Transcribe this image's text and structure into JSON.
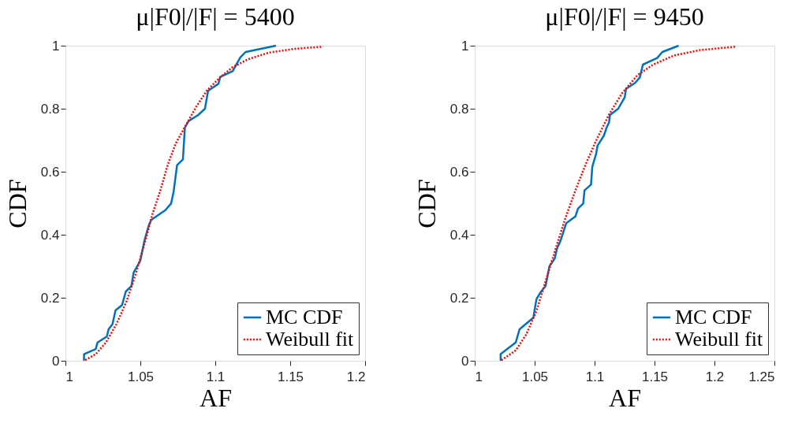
{
  "chart_data": [
    {
      "type": "line",
      "title": "μ|F0|/|F| = 5400",
      "xlabel": "AF",
      "ylabel": "CDF",
      "legend": "bottom right",
      "grid": false,
      "xlim": [
        1,
        1.2
      ],
      "xticks": [
        1,
        1.05,
        1.1,
        1.15,
        1.2
      ],
      "ylim": [
        0,
        1
      ],
      "yticks": [
        0,
        0.2,
        0.4,
        0.6,
        0.8,
        1
      ],
      "series": [
        {
          "name": "MC CDF",
          "color": "#0072bd",
          "line_style": "solid",
          "x": [
            1.0124,
            1.0124,
            1.0202,
            1.0214,
            1.0276,
            1.0288,
            1.0314,
            1.0334,
            1.0378,
            1.0403,
            1.044,
            1.0455,
            1.05,
            1.0526,
            1.0555,
            1.0572,
            1.0667,
            1.0705,
            1.0722,
            1.0745,
            1.0784,
            1.0797,
            1.0822,
            1.0886,
            1.0931,
            1.0952,
            1.1021,
            1.1033,
            1.1116,
            1.1167,
            1.1202,
            1.1405
          ],
          "values": [
            0,
            0.021,
            0.037,
            0.058,
            0.077,
            0.1,
            0.116,
            0.16,
            0.177,
            0.22,
            0.237,
            0.28,
            0.318,
            0.379,
            0.428,
            0.447,
            0.478,
            0.499,
            0.537,
            0.621,
            0.639,
            0.74,
            0.761,
            0.78,
            0.8,
            0.857,
            0.879,
            0.901,
            0.919,
            0.963,
            0.98,
            1.0
          ]
        },
        {
          "name": "Weibull fit",
          "color": "#ff0000",
          "line_style": "dotted",
          "x": [
            1.0133,
            1.0202,
            1.027,
            1.034,
            1.0409,
            1.0469,
            1.0529,
            1.0581,
            1.0633,
            1.0684,
            1.0736,
            1.0805,
            1.0874,
            1.0943,
            1.1029,
            1.1116,
            1.1219,
            1.1357,
            1.1529,
            1.1719
          ],
          "values": [
            0.002,
            0.021,
            0.058,
            0.116,
            0.19,
            0.275,
            0.374,
            0.466,
            0.54,
            0.624,
            0.69,
            0.749,
            0.807,
            0.857,
            0.898,
            0.932,
            0.957,
            0.978,
            0.99,
            0.997
          ]
        }
      ]
    },
    {
      "type": "line",
      "title": "μ|F0|/|F| = 9450",
      "xlabel": "AF",
      "ylabel": "CDF",
      "legend": "bottom right",
      "grid": false,
      "xlim": [
        1,
        1.25
      ],
      "xticks": [
        1,
        1.05,
        1.1,
        1.15,
        1.2,
        1.25
      ],
      "ylim": [
        0,
        1
      ],
      "yticks": [
        0,
        0.2,
        0.4,
        0.6,
        0.8,
        1
      ],
      "series": [
        {
          "name": "MC CDF",
          "color": "#0072bd",
          "line_style": "solid",
          "x": [
            1.0216,
            1.0216,
            1.0342,
            1.0374,
            1.0489,
            1.0515,
            1.0554,
            1.0591,
            1.0623,
            1.0667,
            1.0688,
            1.0714,
            1.0764,
            1.084,
            1.0861,
            1.0905,
            1.0916,
            1.097,
            1.0981,
            1.1013,
            1.1024,
            1.1078,
            1.11,
            1.1121,
            1.1128,
            1.1197,
            1.1251,
            1.1262,
            1.1338,
            1.1377,
            1.1403,
            1.1522,
            1.1565,
            1.1701
          ],
          "values": [
            0,
            0.021,
            0.058,
            0.1,
            0.137,
            0.196,
            0.22,
            0.237,
            0.3,
            0.324,
            0.358,
            0.379,
            0.437,
            0.458,
            0.483,
            0.499,
            0.541,
            0.559,
            0.616,
            0.657,
            0.682,
            0.715,
            0.74,
            0.757,
            0.78,
            0.8,
            0.836,
            0.863,
            0.882,
            0.899,
            0.94,
            0.961,
            0.98,
            1.0
          ]
        },
        {
          "name": "Weibull fit",
          "color": "#ff0000",
          "line_style": "dotted",
          "x": [
            1.0223,
            1.0342,
            1.0429,
            1.0515,
            1.0602,
            1.0677,
            1.0753,
            1.084,
            1.0926,
            1.1013,
            1.1121,
            1.1229,
            1.1359,
            1.1489,
            1.1662,
            1.1879,
            1.2182
          ],
          "values": [
            0.002,
            0.033,
            0.083,
            0.158,
            0.266,
            0.358,
            0.449,
            0.541,
            0.624,
            0.699,
            0.782,
            0.849,
            0.907,
            0.94,
            0.969,
            0.986,
            0.997
          ]
        }
      ]
    }
  ]
}
